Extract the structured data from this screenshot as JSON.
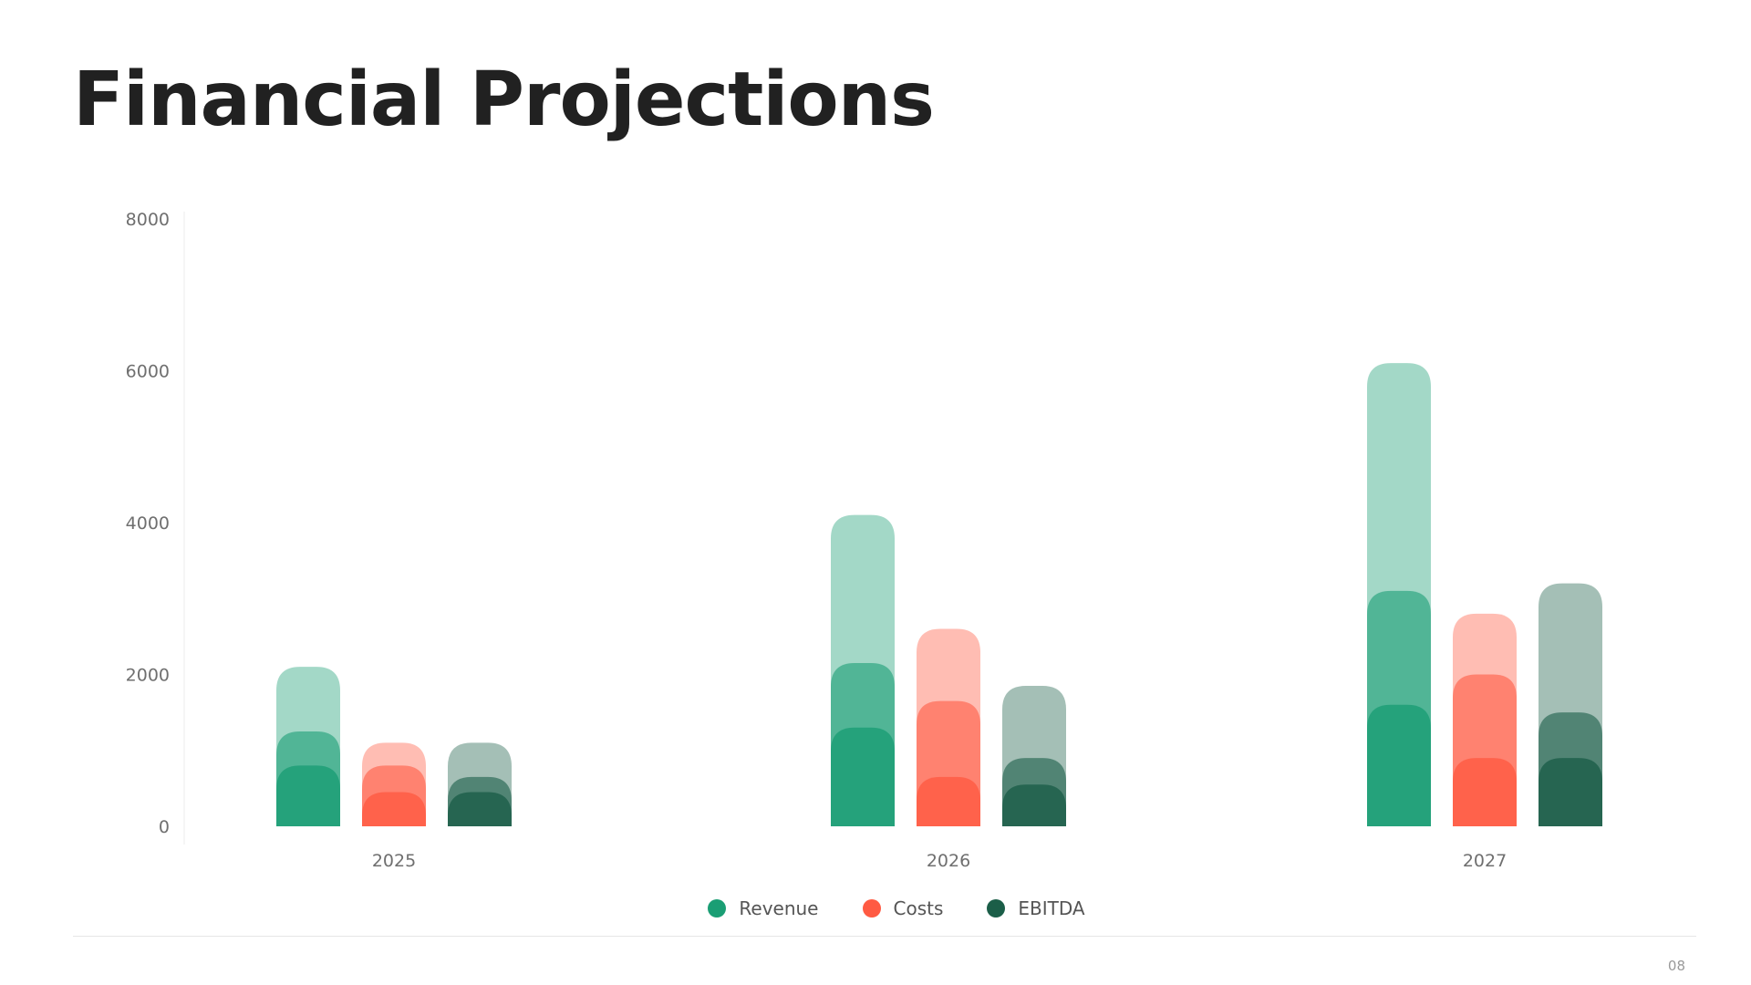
{
  "slide": {
    "title": "Financial Projections",
    "page_number": "08"
  },
  "colors": {
    "revenue": "#1a9e74",
    "costs": "#ff5a42",
    "ebitda": "#1b5e48"
  },
  "legend": [
    {
      "label": "Revenue",
      "color": "#1a9e74"
    },
    {
      "label": "Costs",
      "color": "#ff5a42"
    },
    {
      "label": "EBITDA",
      "color": "#1b5e48"
    }
  ],
  "chart_data": {
    "type": "bar",
    "categories": [
      "2025",
      "2026",
      "2027"
    ],
    "ylim": [
      0,
      8000
    ],
    "yticks": [
      "0",
      "2000",
      "4000",
      "6000",
      "8000"
    ],
    "series": [
      {
        "name": "Revenue",
        "color": "#1a9e74",
        "layers": [
          [
            2100,
            4100,
            6100
          ],
          [
            1250,
            2150,
            3100
          ],
          [
            800,
            1300,
            1600
          ]
        ]
      },
      {
        "name": "Costs",
        "color": "#ff5a42",
        "layers": [
          [
            1100,
            2600,
            2800
          ],
          [
            800,
            1650,
            2000
          ],
          [
            450,
            650,
            900
          ]
        ]
      },
      {
        "name": "EBITDA",
        "color": "#1b5e48",
        "layers": [
          [
            1100,
            1850,
            3200
          ],
          [
            650,
            900,
            1500
          ],
          [
            450,
            550,
            900
          ]
        ]
      }
    ],
    "grid": false,
    "legend_position": "bottom-center"
  }
}
